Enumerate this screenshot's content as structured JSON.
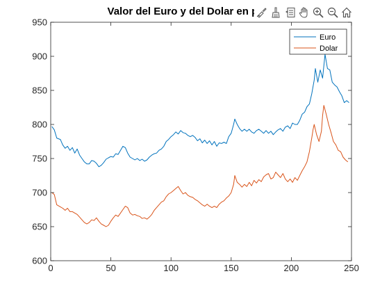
{
  "toolbar": {
    "icons": [
      "brush-icon",
      "broom-icon",
      "datatip-icon",
      "pan-hand-icon",
      "zoom-in-icon",
      "zoom-out-icon",
      "home-icon"
    ]
  },
  "chart_data": {
    "type": "line",
    "title": "Valor del Euro y del Dolar en pesos",
    "xlabel": "",
    "ylabel": "",
    "xlim": [
      0,
      250
    ],
    "ylim": [
      600,
      950
    ],
    "x_ticks": [
      0,
      50,
      100,
      150,
      200,
      250
    ],
    "y_ticks": [
      600,
      650,
      700,
      750,
      800,
      850,
      900,
      950
    ],
    "grid": false,
    "legend_position": "top-right",
    "series": [
      {
        "name": "Euro",
        "color": "#0072BD",
        "points": [
          [
            1,
            797
          ],
          [
            3,
            792
          ],
          [
            5,
            780
          ],
          [
            8,
            778
          ],
          [
            10,
            770
          ],
          [
            12,
            765
          ],
          [
            14,
            768
          ],
          [
            16,
            762
          ],
          [
            18,
            766
          ],
          [
            20,
            758
          ],
          [
            22,
            764
          ],
          [
            24,
            755
          ],
          [
            26,
            750
          ],
          [
            28,
            745
          ],
          [
            30,
            742
          ],
          [
            32,
            742
          ],
          [
            34,
            747
          ],
          [
            36,
            746
          ],
          [
            38,
            743
          ],
          [
            40,
            738
          ],
          [
            42,
            740
          ],
          [
            44,
            744
          ],
          [
            46,
            749
          ],
          [
            48,
            751
          ],
          [
            50,
            753
          ],
          [
            52,
            752
          ],
          [
            54,
            757
          ],
          [
            56,
            756
          ],
          [
            58,
            762
          ],
          [
            60,
            768
          ],
          [
            62,
            766
          ],
          [
            64,
            758
          ],
          [
            66,
            752
          ],
          [
            68,
            750
          ],
          [
            70,
            748
          ],
          [
            72,
            750
          ],
          [
            74,
            747
          ],
          [
            76,
            749
          ],
          [
            78,
            746
          ],
          [
            80,
            748
          ],
          [
            82,
            752
          ],
          [
            84,
            755
          ],
          [
            86,
            757
          ],
          [
            88,
            758
          ],
          [
            90,
            762
          ],
          [
            92,
            764
          ],
          [
            94,
            768
          ],
          [
            96,
            775
          ],
          [
            98,
            778
          ],
          [
            100,
            782
          ],
          [
            102,
            785
          ],
          [
            104,
            789
          ],
          [
            106,
            786
          ],
          [
            108,
            791
          ],
          [
            110,
            788
          ],
          [
            112,
            787
          ],
          [
            114,
            784
          ],
          [
            116,
            782
          ],
          [
            118,
            784
          ],
          [
            120,
            781
          ],
          [
            122,
            776
          ],
          [
            124,
            779
          ],
          [
            126,
            773
          ],
          [
            128,
            777
          ],
          [
            130,
            772
          ],
          [
            132,
            776
          ],
          [
            134,
            770
          ],
          [
            136,
            775
          ],
          [
            138,
            768
          ],
          [
            140,
            773
          ],
          [
            142,
            772
          ],
          [
            144,
            774
          ],
          [
            146,
            772
          ],
          [
            148,
            782
          ],
          [
            150,
            787
          ],
          [
            152,
            800
          ],
          [
            153,
            808
          ],
          [
            155,
            800
          ],
          [
            157,
            794
          ],
          [
            159,
            790
          ],
          [
            161,
            793
          ],
          [
            163,
            790
          ],
          [
            165,
            793
          ],
          [
            167,
            789
          ],
          [
            169,
            787
          ],
          [
            171,
            791
          ],
          [
            173,
            793
          ],
          [
            175,
            790
          ],
          [
            177,
            787
          ],
          [
            179,
            791
          ],
          [
            181,
            787
          ],
          [
            183,
            790
          ],
          [
            185,
            785
          ],
          [
            187,
            789
          ],
          [
            189,
            792
          ],
          [
            191,
            794
          ],
          [
            193,
            790
          ],
          [
            195,
            796
          ],
          [
            197,
            798
          ],
          [
            199,
            794
          ],
          [
            201,
            802
          ],
          [
            203,
            800
          ],
          [
            205,
            800
          ],
          [
            207,
            806
          ],
          [
            209,
            815
          ],
          [
            211,
            818
          ],
          [
            213,
            826
          ],
          [
            215,
            830
          ],
          [
            217,
            845
          ],
          [
            219,
            865
          ],
          [
            220,
            882
          ],
          [
            222,
            862
          ],
          [
            224,
            880
          ],
          [
            226,
            868
          ],
          [
            228,
            903
          ],
          [
            230,
            882
          ],
          [
            232,
            880
          ],
          [
            234,
            862
          ],
          [
            236,
            858
          ],
          [
            238,
            855
          ],
          [
            240,
            848
          ],
          [
            242,
            842
          ],
          [
            244,
            832
          ],
          [
            246,
            835
          ],
          [
            248,
            832
          ]
        ]
      },
      {
        "name": "Dolar",
        "color": "#D95319",
        "points": [
          [
            1,
            700
          ],
          [
            3,
            697
          ],
          [
            5,
            682
          ],
          [
            8,
            679
          ],
          [
            10,
            677
          ],
          [
            12,
            674
          ],
          [
            14,
            677
          ],
          [
            16,
            672
          ],
          [
            18,
            672
          ],
          [
            20,
            670
          ],
          [
            22,
            668
          ],
          [
            24,
            664
          ],
          [
            26,
            660
          ],
          [
            28,
            656
          ],
          [
            30,
            654
          ],
          [
            32,
            656
          ],
          [
            34,
            660
          ],
          [
            36,
            659
          ],
          [
            38,
            663
          ],
          [
            40,
            658
          ],
          [
            42,
            654
          ],
          [
            44,
            652
          ],
          [
            46,
            650
          ],
          [
            48,
            652
          ],
          [
            50,
            658
          ],
          [
            52,
            663
          ],
          [
            54,
            667
          ],
          [
            56,
            665
          ],
          [
            58,
            670
          ],
          [
            60,
            675
          ],
          [
            62,
            680
          ],
          [
            64,
            678
          ],
          [
            66,
            670
          ],
          [
            68,
            667
          ],
          [
            70,
            668
          ],
          [
            72,
            666
          ],
          [
            74,
            665
          ],
          [
            76,
            662
          ],
          [
            78,
            663
          ],
          [
            80,
            661
          ],
          [
            82,
            664
          ],
          [
            84,
            668
          ],
          [
            86,
            674
          ],
          [
            88,
            678
          ],
          [
            90,
            682
          ],
          [
            92,
            686
          ],
          [
            94,
            688
          ],
          [
            96,
            694
          ],
          [
            98,
            698
          ],
          [
            100,
            700
          ],
          [
            102,
            703
          ],
          [
            104,
            706
          ],
          [
            106,
            709
          ],
          [
            108,
            703
          ],
          [
            110,
            698
          ],
          [
            112,
            700
          ],
          [
            114,
            696
          ],
          [
            116,
            694
          ],
          [
            118,
            693
          ],
          [
            120,
            690
          ],
          [
            122,
            688
          ],
          [
            124,
            685
          ],
          [
            126,
            682
          ],
          [
            128,
            680
          ],
          [
            130,
            683
          ],
          [
            132,
            680
          ],
          [
            134,
            678
          ],
          [
            136,
            680
          ],
          [
            138,
            678
          ],
          [
            140,
            683
          ],
          [
            142,
            686
          ],
          [
            144,
            688
          ],
          [
            146,
            692
          ],
          [
            148,
            695
          ],
          [
            150,
            700
          ],
          [
            152,
            712
          ],
          [
            153,
            725
          ],
          [
            155,
            715
          ],
          [
            157,
            712
          ],
          [
            159,
            708
          ],
          [
            161,
            712
          ],
          [
            163,
            709
          ],
          [
            165,
            715
          ],
          [
            167,
            710
          ],
          [
            169,
            718
          ],
          [
            171,
            714
          ],
          [
            173,
            719
          ],
          [
            175,
            716
          ],
          [
            177,
            723
          ],
          [
            179,
            726
          ],
          [
            181,
            728
          ],
          [
            183,
            720
          ],
          [
            185,
            722
          ],
          [
            187,
            730
          ],
          [
            189,
            726
          ],
          [
            191,
            722
          ],
          [
            193,
            728
          ],
          [
            195,
            720
          ],
          [
            197,
            716
          ],
          [
            199,
            720
          ],
          [
            201,
            715
          ],
          [
            203,
            722
          ],
          [
            205,
            718
          ],
          [
            207,
            725
          ],
          [
            209,
            732
          ],
          [
            211,
            738
          ],
          [
            213,
            745
          ],
          [
            215,
            760
          ],
          [
            217,
            780
          ],
          [
            218,
            792
          ],
          [
            219,
            800
          ],
          [
            221,
            785
          ],
          [
            223,
            775
          ],
          [
            225,
            790
          ],
          [
            226,
            813
          ],
          [
            227,
            828
          ],
          [
            229,
            815
          ],
          [
            231,
            800
          ],
          [
            233,
            788
          ],
          [
            235,
            775
          ],
          [
            237,
            770
          ],
          [
            239,
            762
          ],
          [
            241,
            760
          ],
          [
            243,
            752
          ],
          [
            245,
            748
          ],
          [
            247,
            745
          ]
        ]
      }
    ]
  }
}
